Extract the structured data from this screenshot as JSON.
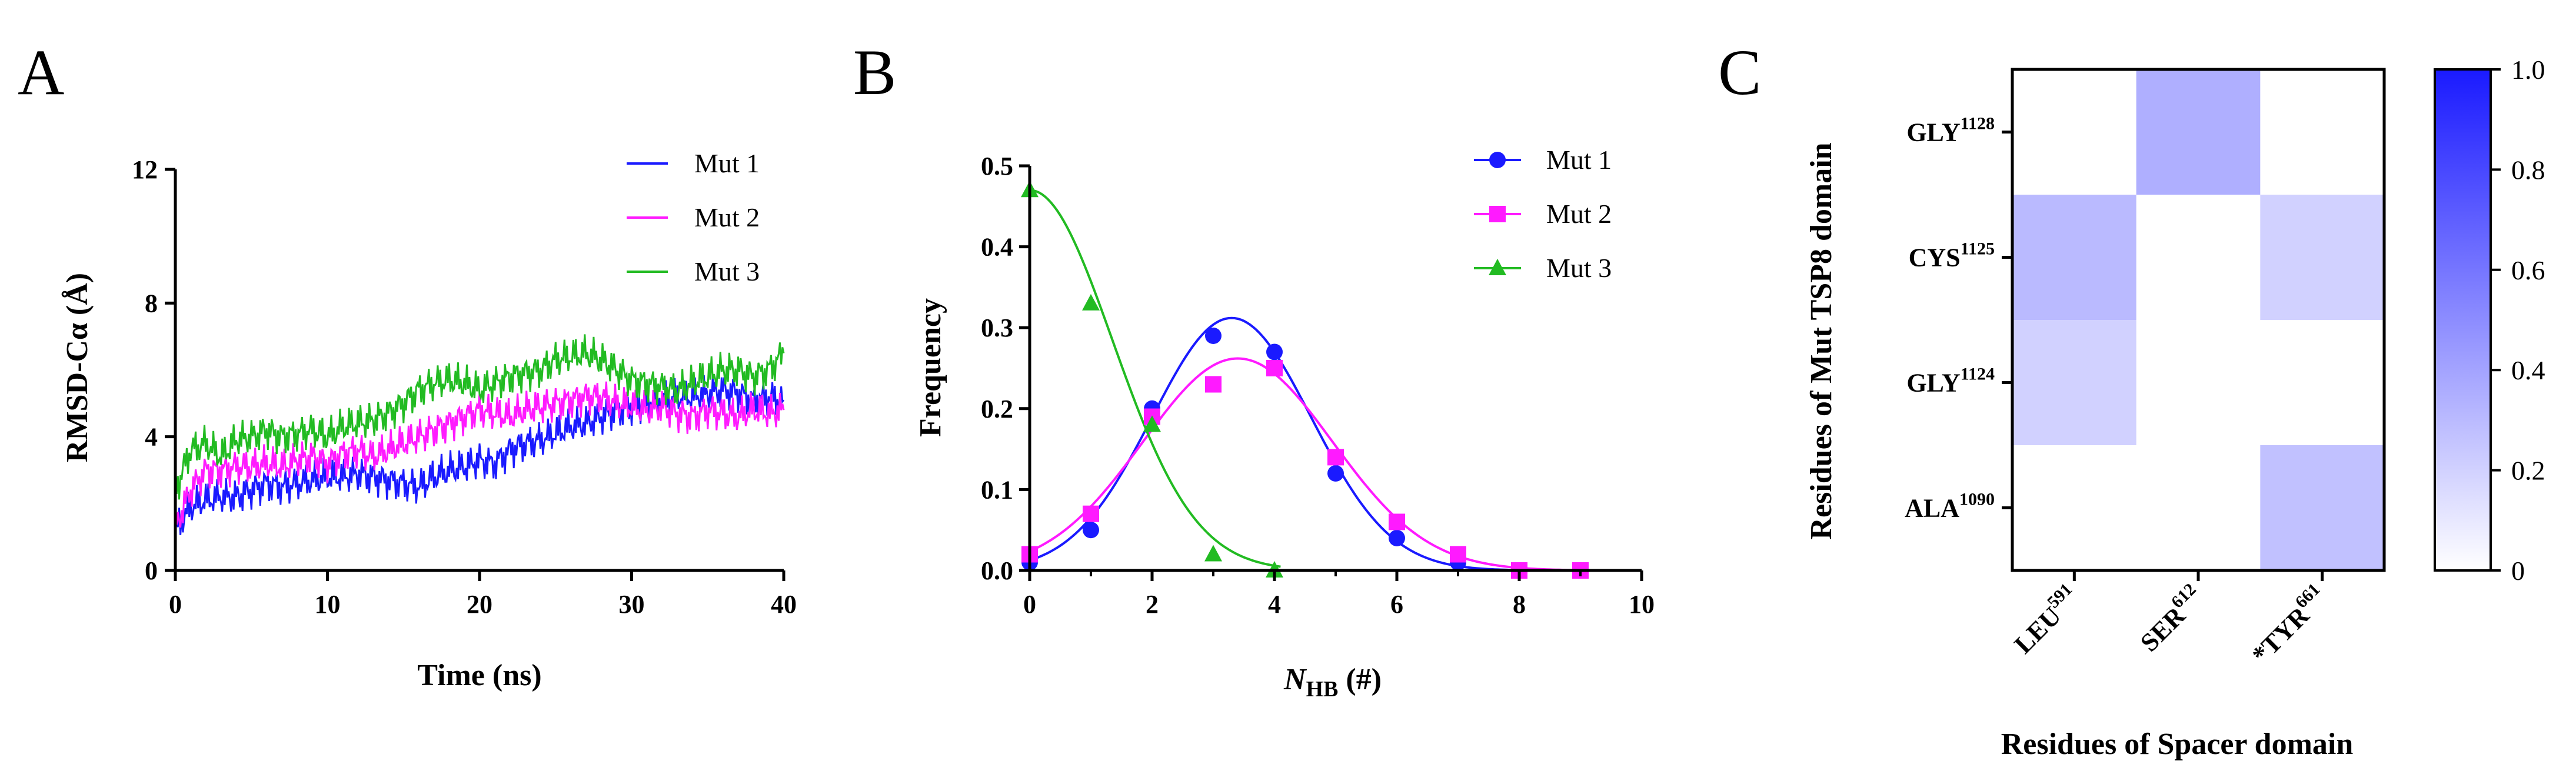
{
  "chart_data": [
    {
      "panel": "A",
      "type": "line",
      "xlabel": "Time (ns)",
      "ylabel": "RMSD-Cα (Å)",
      "xlim": [
        0,
        40
      ],
      "ylim": [
        0,
        12
      ],
      "xticks": [
        "0",
        "10",
        "20",
        "30",
        "40"
      ],
      "yticks": [
        "0",
        "4",
        "8",
        "12"
      ],
      "legend_position": "top-right",
      "series": [
        {
          "name": "Mut 1",
          "color": "#1a1aff",
          "x": [
            0,
            1,
            2,
            3,
            4,
            5,
            6,
            7,
            8,
            9,
            10,
            11,
            12,
            13,
            14,
            15,
            16,
            17,
            18,
            19,
            20,
            21,
            22,
            23,
            24,
            25,
            26,
            27,
            28,
            29,
            30,
            31,
            32,
            33,
            34,
            35,
            36,
            37,
            38,
            39,
            40
          ],
          "values": [
            1.2,
            1.9,
            2.1,
            2.2,
            2.2,
            2.4,
            2.6,
            2.5,
            2.6,
            2.7,
            2.8,
            2.8,
            2.9,
            2.8,
            2.7,
            2.6,
            2.5,
            2.8,
            3.0,
            3.1,
            3.3,
            3.2,
            3.6,
            3.8,
            3.9,
            4.1,
            4.3,
            4.4,
            4.6,
            4.8,
            4.9,
            5.0,
            5.1,
            5.2,
            5.2,
            5.3,
            5.4,
            5.3,
            5.1,
            5.2,
            5.1
          ]
        },
        {
          "name": "Mut 2",
          "color": "#ff1aff",
          "x": [
            0,
            1,
            2,
            3,
            4,
            5,
            6,
            7,
            8,
            9,
            10,
            11,
            12,
            13,
            14,
            15,
            16,
            17,
            18,
            19,
            20,
            21,
            22,
            23,
            24,
            25,
            26,
            27,
            28,
            29,
            30,
            31,
            32,
            33,
            34,
            35,
            36,
            37,
            38,
            39,
            40
          ],
          "values": [
            1.3,
            2.4,
            3.0,
            3.0,
            3.1,
            3.1,
            3.2,
            3.1,
            3.3,
            3.4,
            3.2,
            3.5,
            3.6,
            3.4,
            3.6,
            3.8,
            4.0,
            4.2,
            4.4,
            4.6,
            4.8,
            4.7,
            4.6,
            4.8,
            4.9,
            5.0,
            5.1,
            5.2,
            5.2,
            5.0,
            4.9,
            4.8,
            4.9,
            4.7,
            4.6,
            4.8,
            4.7,
            4.6,
            4.8,
            4.7,
            4.8
          ]
        },
        {
          "name": "Mut 3",
          "color": "#22bb22",
          "x": [
            0,
            1,
            2,
            3,
            4,
            5,
            6,
            7,
            8,
            9,
            10,
            11,
            12,
            13,
            14,
            15,
            16,
            17,
            18,
            19,
            20,
            21,
            22,
            23,
            24,
            25,
            26,
            27,
            28,
            29,
            30,
            31,
            32,
            33,
            34,
            35,
            36,
            37,
            38,
            39,
            40
          ],
          "values": [
            2.4,
            3.6,
            3.8,
            3.4,
            3.9,
            4.0,
            4.2,
            4.0,
            4.1,
            4.2,
            4.0,
            4.3,
            4.4,
            4.5,
            4.7,
            5.0,
            5.4,
            5.6,
            5.7,
            5.6,
            5.4,
            5.6,
            5.8,
            5.9,
            6.0,
            6.3,
            6.4,
            6.5,
            6.3,
            6.0,
            5.7,
            5.6,
            5.5,
            5.4,
            5.6,
            5.8,
            6.0,
            6.0,
            5.8,
            6.0,
            6.5
          ]
        }
      ]
    },
    {
      "panel": "B",
      "type": "scatter",
      "xlabel_main": "N",
      "xlabel_sub": "HB",
      "xlabel_tail": " (#)",
      "ylabel": "Frequency",
      "xlim": [
        0,
        10
      ],
      "ylim": [
        0,
        0.5
      ],
      "xticks": [
        "0",
        "2",
        "4",
        "6",
        "8",
        "10"
      ],
      "yticks": [
        "0.0",
        "0.1",
        "0.2",
        "0.3",
        "0.4",
        "0.5"
      ],
      "legend_position": "top-right",
      "series": [
        {
          "name": "Mut 1",
          "color": "#1a1aff",
          "marker": "circle",
          "x": [
            0,
            1,
            2,
            3,
            4,
            5,
            6,
            7,
            8,
            9
          ],
          "values": [
            0.01,
            0.05,
            0.2,
            0.29,
            0.27,
            0.12,
            0.04,
            0.01,
            0.0,
            0.0
          ],
          "fit": {
            "amplitude": 0.312,
            "mean": 3.3,
            "sigma": 1.3
          }
        },
        {
          "name": "Mut 2",
          "color": "#ff1aff",
          "marker": "square",
          "x": [
            0,
            1,
            2,
            3,
            4,
            5,
            6,
            7,
            8,
            9
          ],
          "values": [
            0.02,
            0.07,
            0.19,
            0.23,
            0.25,
            0.14,
            0.06,
            0.02,
            0.0,
            0.0
          ],
          "fit": {
            "amplitude": 0.262,
            "mean": 3.4,
            "sigma": 1.55
          }
        },
        {
          "name": "Mut 3",
          "color": "#22bb22",
          "marker": "triangle",
          "x": [
            0,
            1,
            2,
            3,
            4
          ],
          "values": [
            0.47,
            0.33,
            0.18,
            0.02,
            0.0
          ],
          "fit": {
            "amplitude": 0.47,
            "mean": 0.0,
            "sigma": 1.35
          }
        }
      ]
    },
    {
      "panel": "C",
      "type": "heatmap",
      "xlabel": "Residues of Spacer domain",
      "ylabel": "Residues of Mut TSP8 domain",
      "x_categories": [
        {
          "name": "LEU",
          "sup": "591",
          "prefix": ""
        },
        {
          "name": "SER",
          "sup": "612",
          "prefix": ""
        },
        {
          "name": "TYR",
          "sup": "661",
          "prefix": "*"
        }
      ],
      "y_categories": [
        {
          "name": "GLY",
          "sup": "1128"
        },
        {
          "name": "CYS",
          "sup": "1125"
        },
        {
          "name": "GLY",
          "sup": "1124"
        },
        {
          "name": "ALA",
          "sup": "1090"
        }
      ],
      "values": [
        [
          0.0,
          0.35,
          0.0
        ],
        [
          0.3,
          0.0,
          0.2
        ],
        [
          0.2,
          0.0,
          0.0
        ],
        [
          0.0,
          0.0,
          0.27
        ]
      ],
      "colorscale": {
        "min": 0,
        "max": 1.0,
        "low_color": "#ffffff",
        "high_color": "#1a1aff",
        "ticks": [
          "0",
          "0.2",
          "0.4",
          "0.6",
          "0.8",
          "1.0"
        ]
      }
    }
  ],
  "panels": {
    "a": "A",
    "b": "B",
    "c": "C"
  }
}
